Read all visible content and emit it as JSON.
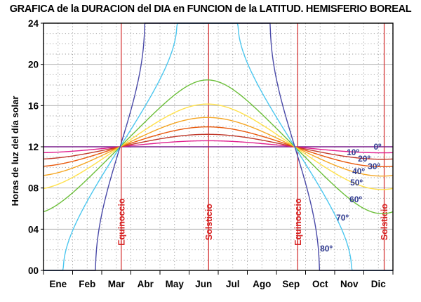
{
  "chart_data": {
    "type": "line",
    "title": "GRAFICA de la DURACION del DIA en FUNCION de la LATITUD. HEMISFERIO BOREAL",
    "xlabel": "",
    "ylabel": "Horas de luz del día solar",
    "ylim": [
      0,
      24
    ],
    "yticks": [
      "00",
      "04",
      "08",
      "12",
      "16",
      "20",
      "24"
    ],
    "categories": [
      "Ene",
      "Feb",
      "Mar",
      "Abr",
      "May",
      "Jun",
      "Jul",
      "Ago",
      "Sep",
      "Oct",
      "Nov",
      "Dic"
    ],
    "markers": [
      {
        "label": "Equinoccio",
        "month": 2.67
      },
      {
        "label": "Solsticio",
        "month": 5.67
      },
      {
        "label": "Equinoccio",
        "month": 8.73
      },
      {
        "label": "Solsticio",
        "month": 11.7
      }
    ],
    "series": [
      {
        "name": "0º",
        "latitude": 0,
        "color": "#7a1f8c"
      },
      {
        "name": "10º",
        "latitude": 10,
        "color": "#e0208f"
      },
      {
        "name": "20º",
        "latitude": 20,
        "color": "#c0392b"
      },
      {
        "name": "30º",
        "latitude": 30,
        "color": "#e8590c"
      },
      {
        "name": "40º",
        "latitude": 40,
        "color": "#f5a623"
      },
      {
        "name": "50º",
        "latitude": 50,
        "color": "#ffe14a"
      },
      {
        "name": "60º",
        "latitude": 60,
        "color": "#6cbf3a"
      },
      {
        "name": "70º",
        "latitude": 70,
        "color": "#4cc7ef"
      },
      {
        "name": "80º",
        "latitude": 80,
        "color": "#4a4aa8"
      }
    ],
    "grid": true,
    "colors": {
      "marker_line": "#d63a3a",
      "marker_text": "#d61f1f",
      "series_label": "#2f3a8f",
      "grid": "#999999"
    }
  }
}
